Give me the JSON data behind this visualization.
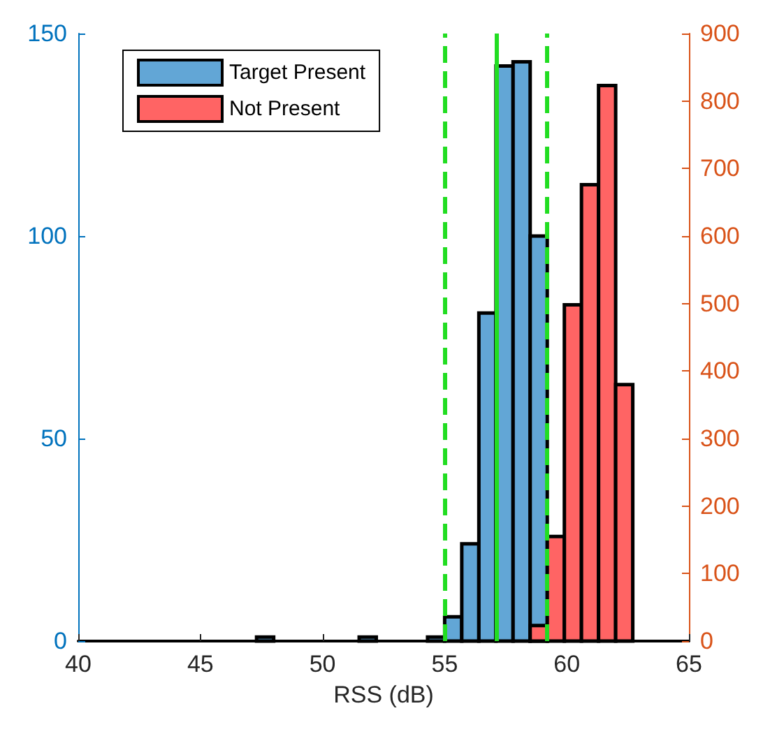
{
  "chart_data": {
    "type": "histogram",
    "xlabel": "RSS (dB)",
    "bins": [
      41.0,
      41.7,
      42.4,
      43.1,
      43.8,
      44.5,
      45.2,
      45.9,
      46.6,
      47.3,
      48.0,
      48.7,
      49.4,
      50.1,
      50.8,
      51.5,
      52.2,
      52.9,
      53.6,
      54.3,
      55.0,
      55.7,
      56.4,
      57.1,
      57.8,
      58.5,
      59.2,
      59.9,
      60.6,
      61.3,
      62.0,
      62.7
    ],
    "series": [
      {
        "name": "Target Present",
        "color": "#62a6d6",
        "values": [
          0,
          0,
          0,
          0,
          0,
          0,
          0,
          0,
          0,
          1,
          0,
          0,
          0,
          0,
          0,
          1,
          0,
          0,
          0,
          1,
          6,
          24,
          81,
          142,
          143,
          100,
          0,
          0,
          0,
          0,
          0
        ]
      },
      {
        "name": "Not Present",
        "color": "#ff6464",
        "axis": "y2",
        "values": [
          0,
          0,
          0,
          0,
          0,
          0,
          0,
          0,
          0,
          0,
          0,
          0,
          0,
          0,
          0,
          0,
          0,
          0,
          0,
          0,
          0,
          0,
          0,
          0,
          0,
          23,
          155,
          498,
          676,
          823,
          380
        ]
      }
    ],
    "xlim": [
      40,
      65
    ],
    "xticks": [
      40,
      45,
      50,
      55,
      60,
      65
    ],
    "ylim": [
      0,
      150
    ],
    "yticks": [
      0,
      50,
      100,
      150
    ],
    "y2lim": [
      0,
      900
    ],
    "y2ticks": [
      0,
      100,
      200,
      300,
      400,
      500,
      600,
      700,
      800,
      900
    ],
    "ref_lines": [
      {
        "axis": "x",
        "value": 55,
        "color": "#22dd22",
        "line_style": "dashed"
      },
      {
        "axis": "x",
        "value": 57.1,
        "color": "#22dd22",
        "line_style": "solid"
      },
      {
        "axis": "x",
        "value": 59.2,
        "color": "#22dd22",
        "line_style": "dashed"
      }
    ],
    "legend": "top left",
    "grid": false
  }
}
